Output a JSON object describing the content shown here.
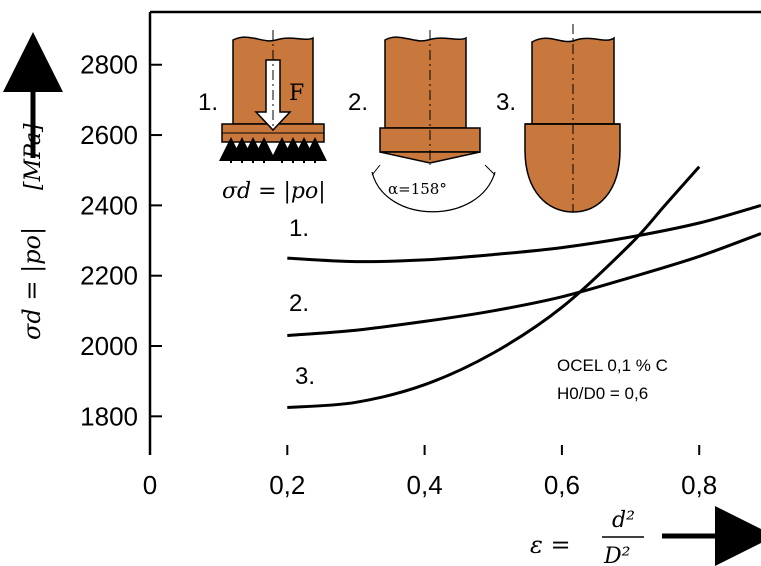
{
  "chart_data": {
    "type": "line",
    "x_ticks": [
      {
        "v": 0,
        "label": "0"
      },
      {
        "v": 0.2,
        "label": "0,2"
      },
      {
        "v": 0.4,
        "label": "0,4"
      },
      {
        "v": 0.6,
        "label": "0,6"
      },
      {
        "v": 0.8,
        "label": "0,8"
      }
    ],
    "y_ticks": [
      {
        "v": 1800,
        "label": "1800"
      },
      {
        "v": 2000,
        "label": "2000"
      },
      {
        "v": 2200,
        "label": "2200"
      },
      {
        "v": 2400,
        "label": "2400"
      },
      {
        "v": 2600,
        "label": "2600"
      },
      {
        "v": 2800,
        "label": "2800"
      }
    ],
    "xlim": [
      0,
      0.89
    ],
    "ylim": [
      1690,
      2950
    ],
    "ylabel_main": "σd = |po|",
    "ylabel_unit": "[MPa]",
    "xlabel_main": "ε =",
    "xlabel_num": "d²",
    "xlabel_den": "D²",
    "series": [
      {
        "name": "1.",
        "x": [
          0.2,
          0.3,
          0.4,
          0.5,
          0.6,
          0.7,
          0.8,
          0.89
        ],
        "y": [
          2250,
          2240,
          2245,
          2260,
          2280,
          2310,
          2350,
          2400
        ]
      },
      {
        "name": "2.",
        "x": [
          0.2,
          0.3,
          0.4,
          0.5,
          0.6,
          0.7,
          0.8,
          0.89
        ],
        "y": [
          2030,
          2045,
          2070,
          2100,
          2140,
          2195,
          2255,
          2320
        ]
      },
      {
        "name": "3.",
        "x": [
          0.2,
          0.3,
          0.4,
          0.5,
          0.6,
          0.7,
          0.75,
          0.8
        ],
        "y": [
          1825,
          1840,
          1890,
          1980,
          2110,
          2290,
          2400,
          2510
        ]
      }
    ],
    "annotations": {
      "material": "OCEL 0,1 % C",
      "ratio": "H0/D0 = 0,6"
    },
    "legend_placement": "top-left (specimen sketches)"
  },
  "sketches": {
    "s1": {
      "label": "1.",
      "force": "F",
      "stress": "σd = |po|"
    },
    "s2": {
      "label": "2.",
      "angle": "α=158°"
    },
    "s3": {
      "label": "3."
    }
  },
  "colors": {
    "copper": "#c8783c",
    "axis": "#000000",
    "curve": "#000000"
  }
}
